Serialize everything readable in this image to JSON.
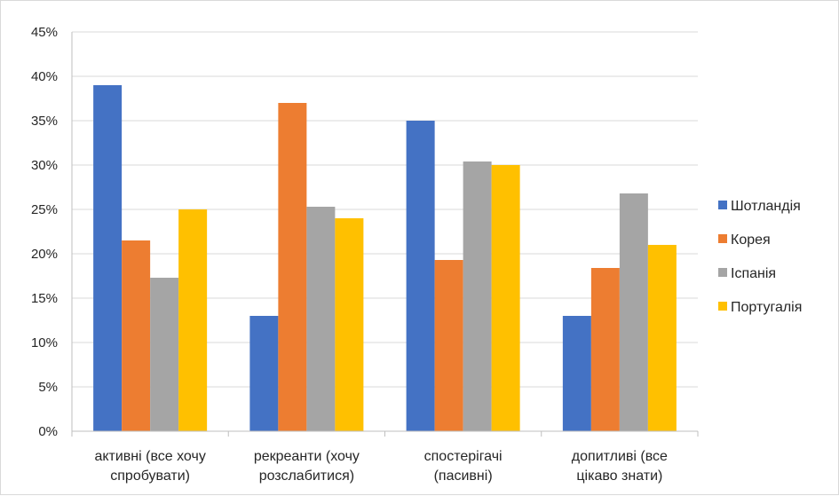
{
  "chart_data": {
    "type": "bar",
    "categories": [
      [
        "активні (все хочу",
        "спробувати)"
      ],
      [
        "рекреанти (хочу",
        "розслабитися)"
      ],
      [
        "спостерігачі",
        "(пасивні)"
      ],
      [
        "допитливі (все",
        "цікаво знати)"
      ]
    ],
    "series": [
      {
        "name": "Шотландія",
        "color": "#4472C4",
        "values": [
          39,
          13,
          35,
          13
        ]
      },
      {
        "name": "Корея",
        "color": "#ED7D31",
        "values": [
          21.5,
          37,
          19.3,
          18.4
        ]
      },
      {
        "name": "Іспанія",
        "color": "#A5A5A5",
        "values": [
          17.3,
          25.3,
          30.4,
          26.8
        ]
      },
      {
        "name": "Португалія",
        "color": "#FFC000",
        "values": [
          25,
          24,
          30,
          21
        ]
      }
    ],
    "yticks": [
      "0%",
      "5%",
      "10%",
      "15%",
      "20%",
      "25%",
      "30%",
      "35%",
      "40%",
      "45%"
    ],
    "ylim": [
      0,
      45
    ],
    "grid": true,
    "legend_position": "right"
  }
}
